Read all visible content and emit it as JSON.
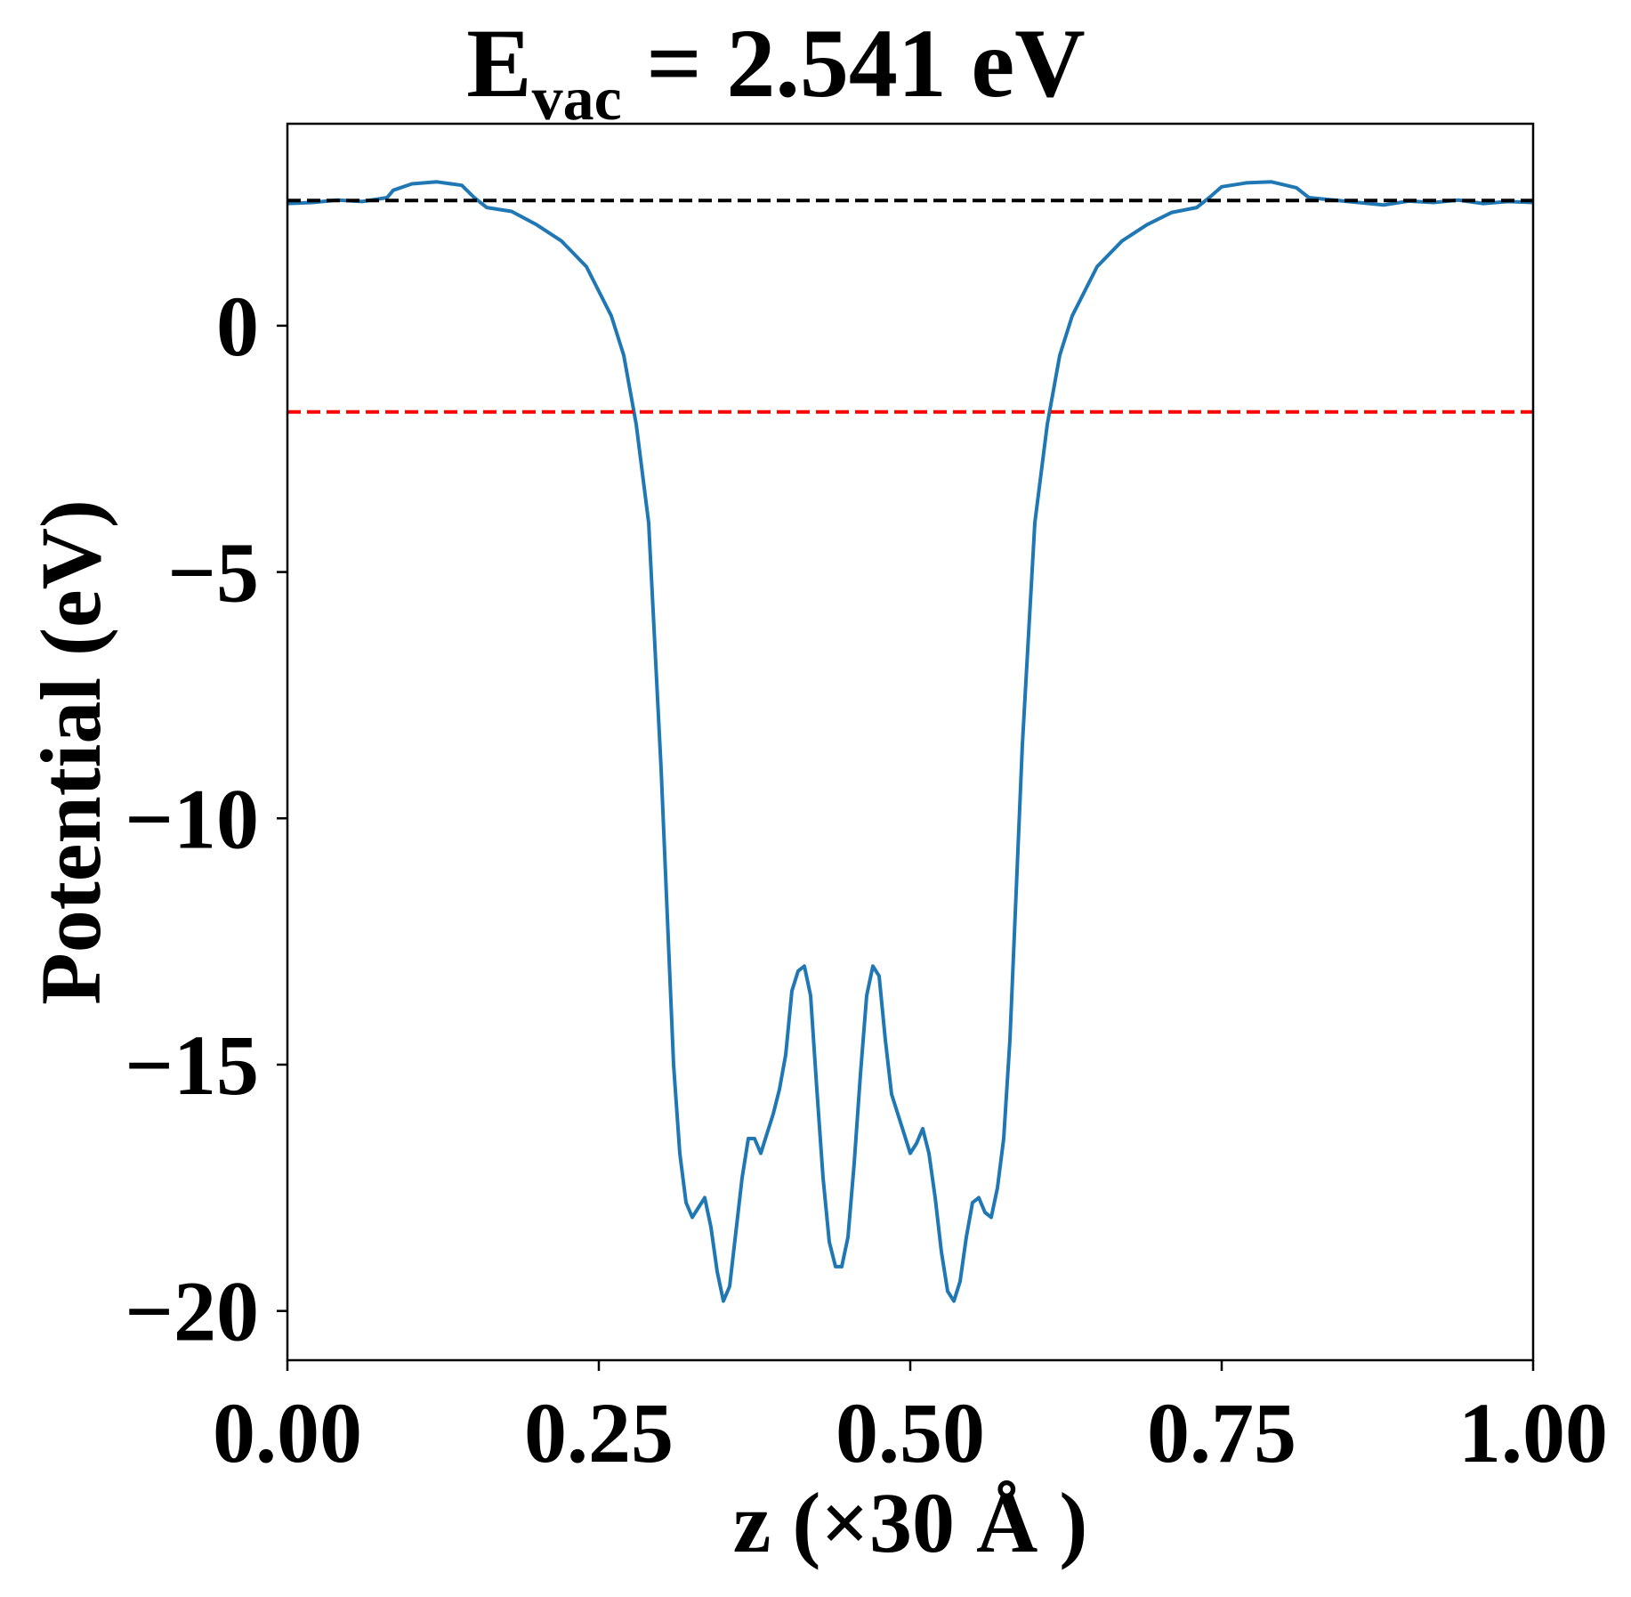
{
  "chart_data": {
    "type": "line",
    "title": {
      "main": "E",
      "subscript": "vac",
      "rest": " = 2.541 eV"
    },
    "xlabel": "z (×30 Å )",
    "ylabel": "Potential (eV)",
    "xlim": [
      0.0,
      1.0
    ],
    "ylim": [
      -21.0,
      4.1
    ],
    "xticks": [
      {
        "value": 0.0,
        "label": "0.00"
      },
      {
        "value": 0.25,
        "label": "0.25"
      },
      {
        "value": 0.5,
        "label": "0.50"
      },
      {
        "value": 0.75,
        "label": "0.75"
      },
      {
        "value": 1.0,
        "label": "1.00"
      }
    ],
    "yticks": [
      {
        "value": 0,
        "label": "0"
      },
      {
        "value": -5,
        "label": "−5"
      },
      {
        "value": -10,
        "label": "−10"
      },
      {
        "value": -15,
        "label": "−15"
      },
      {
        "value": -20,
        "label": "−20"
      }
    ],
    "grid": false,
    "legend": "none",
    "series": [
      {
        "color": "#1f77b4",
        "style": "solid",
        "points": [
          [
            0.0,
            2.48
          ],
          [
            0.02,
            2.5
          ],
          [
            0.04,
            2.55
          ],
          [
            0.06,
            2.52
          ],
          [
            0.08,
            2.6
          ],
          [
            0.085,
            2.75
          ],
          [
            0.1,
            2.88
          ],
          [
            0.12,
            2.92
          ],
          [
            0.14,
            2.85
          ],
          [
            0.15,
            2.6
          ],
          [
            0.16,
            2.4
          ],
          [
            0.18,
            2.32
          ],
          [
            0.2,
            2.05
          ],
          [
            0.22,
            1.72
          ],
          [
            0.24,
            1.2
          ],
          [
            0.26,
            0.2
          ],
          [
            0.27,
            -0.6
          ],
          [
            0.28,
            -2.0
          ],
          [
            0.29,
            -4.0
          ],
          [
            0.3,
            -9.0
          ],
          [
            0.305,
            -12.0
          ],
          [
            0.31,
            -15.0
          ],
          [
            0.315,
            -16.8
          ],
          [
            0.32,
            -17.8
          ],
          [
            0.325,
            -18.1
          ],
          [
            0.33,
            -17.9
          ],
          [
            0.335,
            -17.7
          ],
          [
            0.34,
            -18.3
          ],
          [
            0.345,
            -19.2
          ],
          [
            0.35,
            -19.8
          ],
          [
            0.355,
            -19.5
          ],
          [
            0.36,
            -18.4
          ],
          [
            0.365,
            -17.3
          ],
          [
            0.37,
            -16.5
          ],
          [
            0.375,
            -16.5
          ],
          [
            0.38,
            -16.8
          ],
          [
            0.385,
            -16.4
          ],
          [
            0.39,
            -16.0
          ],
          [
            0.395,
            -15.5
          ],
          [
            0.4,
            -14.8
          ],
          [
            0.405,
            -13.5
          ],
          [
            0.41,
            -13.1
          ],
          [
            0.415,
            -13.0
          ],
          [
            0.42,
            -13.6
          ],
          [
            0.425,
            -15.5
          ],
          [
            0.43,
            -17.3
          ],
          [
            0.435,
            -18.6
          ],
          [
            0.44,
            -19.1
          ],
          [
            0.445,
            -19.1
          ],
          [
            0.45,
            -18.5
          ],
          [
            0.455,
            -17.0
          ],
          [
            0.46,
            -15.2
          ],
          [
            0.465,
            -13.6
          ],
          [
            0.47,
            -13.0
          ],
          [
            0.475,
            -13.2
          ],
          [
            0.48,
            -14.5
          ],
          [
            0.485,
            -15.6
          ],
          [
            0.49,
            -16.0
          ],
          [
            0.495,
            -16.4
          ],
          [
            0.5,
            -16.8
          ],
          [
            0.505,
            -16.6
          ],
          [
            0.51,
            -16.3
          ],
          [
            0.515,
            -16.8
          ],
          [
            0.52,
            -17.7
          ],
          [
            0.525,
            -18.8
          ],
          [
            0.53,
            -19.6
          ],
          [
            0.535,
            -19.8
          ],
          [
            0.54,
            -19.4
          ],
          [
            0.545,
            -18.5
          ],
          [
            0.55,
            -17.8
          ],
          [
            0.555,
            -17.7
          ],
          [
            0.56,
            -18.0
          ],
          [
            0.565,
            -18.1
          ],
          [
            0.57,
            -17.5
          ],
          [
            0.575,
            -16.5
          ],
          [
            0.58,
            -14.5
          ],
          [
            0.585,
            -11.5
          ],
          [
            0.59,
            -8.5
          ],
          [
            0.6,
            -4.0
          ],
          [
            0.61,
            -2.0
          ],
          [
            0.62,
            -0.6
          ],
          [
            0.63,
            0.2
          ],
          [
            0.65,
            1.2
          ],
          [
            0.67,
            1.72
          ],
          [
            0.69,
            2.05
          ],
          [
            0.71,
            2.3
          ],
          [
            0.73,
            2.4
          ],
          [
            0.74,
            2.6
          ],
          [
            0.75,
            2.82
          ],
          [
            0.77,
            2.9
          ],
          [
            0.79,
            2.92
          ],
          [
            0.81,
            2.8
          ],
          [
            0.82,
            2.6
          ],
          [
            0.84,
            2.55
          ],
          [
            0.86,
            2.5
          ],
          [
            0.88,
            2.45
          ],
          [
            0.9,
            2.53
          ],
          [
            0.92,
            2.5
          ],
          [
            0.94,
            2.55
          ],
          [
            0.96,
            2.48
          ],
          [
            0.98,
            2.52
          ],
          [
            1.0,
            2.5
          ]
        ]
      },
      {
        "color": "#000000",
        "style": "dashed",
        "points": [
          [
            0.0,
            2.541
          ],
          [
            1.0,
            2.541
          ]
        ]
      },
      {
        "color": "#ff0000",
        "style": "dashed",
        "points": [
          [
            0.0,
            -1.75
          ],
          [
            1.0,
            -1.75
          ]
        ]
      }
    ]
  }
}
